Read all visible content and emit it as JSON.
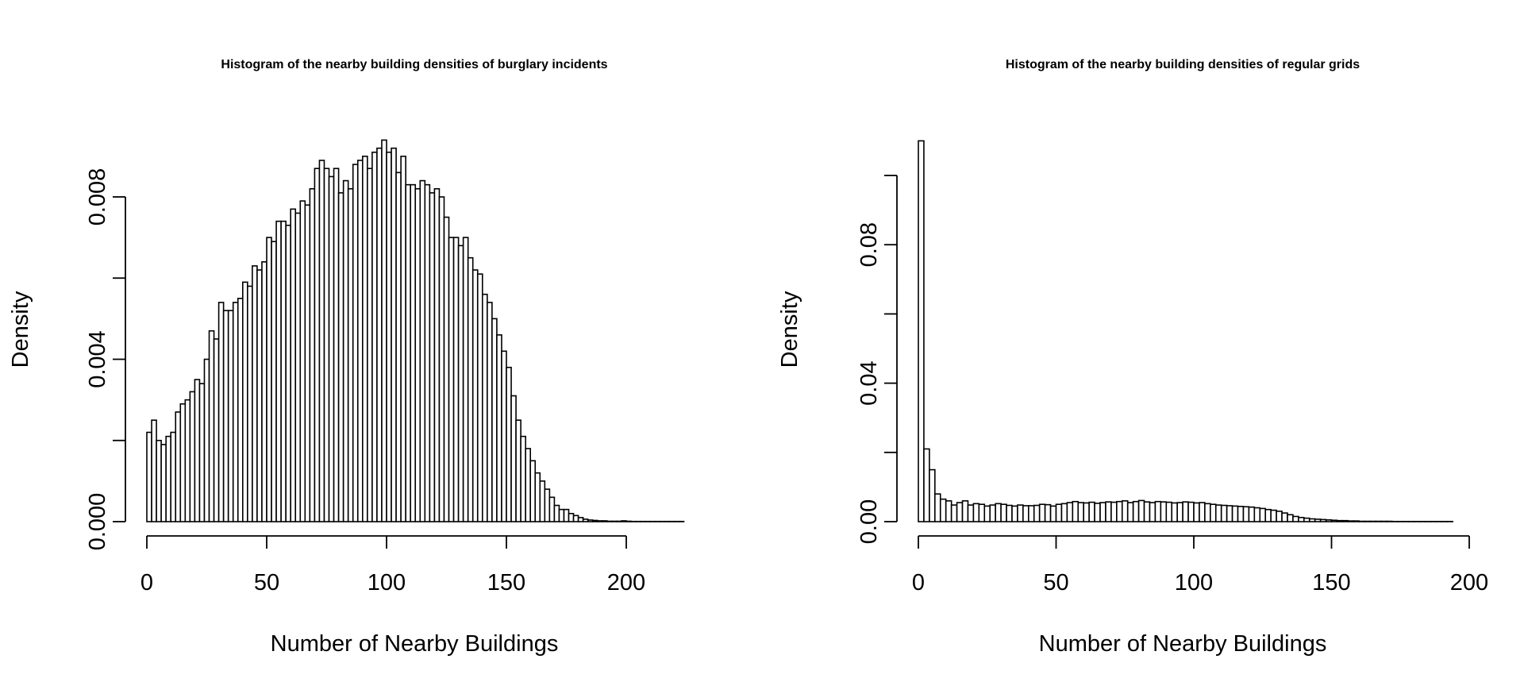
{
  "chart_data": [
    {
      "type": "bar",
      "title": "Histogram of the nearby building densities of burglary incidents",
      "xlabel": "Number of Nearby Buildings",
      "ylabel": "Density",
      "xlim": [
        0,
        224
      ],
      "ylim": [
        0,
        0.008
      ],
      "x_ticks": [
        0,
        50,
        100,
        150,
        200
      ],
      "y_ticks": [
        0,
        0.002,
        0.004,
        0.006,
        0.008
      ],
      "y_tick_labels": [
        "0.000",
        "",
        "0.004",
        "",
        "0.008"
      ],
      "grid": false,
      "bin_width": 2,
      "bin_start": 0,
      "values": [
        0.0022,
        0.0025,
        0.002,
        0.0019,
        0.0021,
        0.0022,
        0.0027,
        0.0029,
        0.003,
        0.0032,
        0.0035,
        0.0034,
        0.004,
        0.0047,
        0.0045,
        0.0054,
        0.0052,
        0.0052,
        0.0054,
        0.0055,
        0.0059,
        0.0058,
        0.0063,
        0.0062,
        0.0064,
        0.007,
        0.0069,
        0.0074,
        0.0074,
        0.0073,
        0.0077,
        0.0076,
        0.0079,
        0.0078,
        0.0082,
        0.0087,
        0.0089,
        0.0087,
        0.0085,
        0.0087,
        0.0081,
        0.0084,
        0.0082,
        0.0088,
        0.0089,
        0.009,
        0.0087,
        0.0091,
        0.0092,
        0.0094,
        0.0091,
        0.0092,
        0.0086,
        0.009,
        0.0083,
        0.0083,
        0.0082,
        0.0084,
        0.0083,
        0.0081,
        0.0082,
        0.008,
        0.0075,
        0.007,
        0.007,
        0.0068,
        0.007,
        0.0065,
        0.0062,
        0.0061,
        0.0056,
        0.0054,
        0.005,
        0.0046,
        0.0042,
        0.0038,
        0.0031,
        0.0025,
        0.0021,
        0.0018,
        0.0015,
        0.0012,
        0.001,
        0.0008,
        0.0006,
        0.0004,
        0.0003,
        0.0003,
        0.0002,
        0.00015,
        0.0001,
        6e-05,
        4e-05,
        3e-05,
        2e-05,
        2e-05,
        1e-05,
        1e-05,
        1e-05,
        2e-05,
        1e-05,
        5e-06,
        5e-06,
        5e-06,
        5e-06,
        5e-06,
        5e-06,
        5e-06,
        5e-06,
        5e-06,
        5e-06,
        5e-06
      ]
    },
    {
      "type": "bar",
      "title": "Histogram of the nearby building densities of regular grids",
      "xlabel": "Number of Nearby Buildings",
      "ylabel": "Density",
      "xlim": [
        0,
        194
      ],
      "ylim": [
        0,
        0.1
      ],
      "x_ticks": [
        0,
        50,
        100,
        150,
        200
      ],
      "y_ticks": [
        0,
        0.02,
        0.04,
        0.06,
        0.08,
        0.1
      ],
      "y_tick_labels": [
        "0.00",
        "",
        "0.04",
        "",
        "0.08",
        ""
      ],
      "grid": false,
      "bin_width": 2,
      "bin_start": 0,
      "values": [
        0.11,
        0.021,
        0.015,
        0.008,
        0.0065,
        0.006,
        0.0048,
        0.0055,
        0.006,
        0.0048,
        0.0052,
        0.005,
        0.0045,
        0.0048,
        0.0052,
        0.005,
        0.0047,
        0.0045,
        0.0048,
        0.0046,
        0.0046,
        0.0047,
        0.005,
        0.0049,
        0.0045,
        0.005,
        0.0052,
        0.0055,
        0.0058,
        0.0055,
        0.0054,
        0.0056,
        0.0053,
        0.0055,
        0.0057,
        0.0056,
        0.0058,
        0.006,
        0.0055,
        0.0058,
        0.0061,
        0.0057,
        0.0055,
        0.0058,
        0.0057,
        0.0056,
        0.0054,
        0.0055,
        0.0057,
        0.0056,
        0.0054,
        0.0055,
        0.0052,
        0.005,
        0.0048,
        0.0047,
        0.0046,
        0.0045,
        0.0044,
        0.0043,
        0.0042,
        0.004,
        0.0038,
        0.0035,
        0.0033,
        0.003,
        0.0025,
        0.002,
        0.0015,
        0.0012,
        0.001,
        0.0008,
        0.0007,
        0.0006,
        0.0005,
        0.0004,
        0.0003,
        0.0003,
        0.0002,
        0.0002,
        0.0001,
        0.0001,
        0.0001,
        0.0001,
        0.0001,
        0.0001,
        5e-05,
        5e-05,
        5e-05,
        5e-05,
        5e-05,
        5e-05,
        5e-05,
        5e-05,
        5e-05,
        5e-05,
        5e-05
      ]
    }
  ]
}
